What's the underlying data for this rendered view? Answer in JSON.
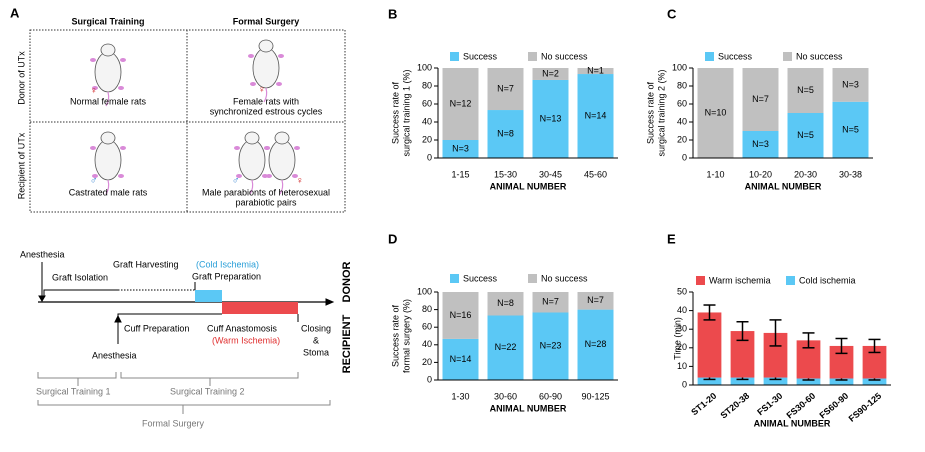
{
  "panel_a": {
    "letter": "A",
    "columns": [
      "Surgical Training",
      "Formal Surgery"
    ],
    "rows": [
      "Donor of UTx",
      "Recipient of UTx"
    ],
    "cells": [
      {
        "label": [
          "Normal female rats"
        ],
        "symbols": [
          "♀"
        ]
      },
      {
        "label": [
          "Female rats with",
          "synchronized estrous cycles"
        ],
        "symbols": [
          "♀"
        ]
      },
      {
        "label": [
          "Castrated male rats"
        ],
        "symbols": [
          "♂"
        ]
      },
      {
        "label": [
          "Male parabionts of heterosexual",
          "parabiotic pairs"
        ],
        "symbols": [
          "♂",
          "♀"
        ]
      }
    ]
  },
  "timeline": {
    "anesthesia_donor": "Anesthesia",
    "graft_isolation": "Graft Isolation",
    "graft_harvesting": "Graft Harvesting",
    "cold_ischemia": "(Cold Ischemia)",
    "graft_preparation": "Graft Preparation",
    "donor": "DONOR",
    "cuff_preparation": "Cuff Preparation",
    "cuff_anastomosis": "Cuff Anastomosis",
    "warm_ischemia": "(Warm Ischemia)",
    "closing": [
      "Closing",
      "&",
      "Stoma"
    ],
    "anesthesia_recipient": "Anesthesia",
    "recipient": "RECIPIENT",
    "surgical_training_1": "Surgical Training 1",
    "surgical_training_2": "Surgical Training 2",
    "formal_surgery": "Formal Surgery"
  },
  "chart_data": [
    {
      "type": "bar",
      "stacked": true,
      "panel": "B",
      "ylabel": [
        "Success rate of",
        "surgical training 1 (%)"
      ],
      "xlabel": "ANIMAL NUMBER",
      "categories": [
        "1-15",
        "15-30",
        "30-45",
        "45-60"
      ],
      "series": [
        {
          "name": "Success",
          "color": "#5bc8f5",
          "values": [
            20,
            53.3,
            86.7,
            93.3
          ],
          "n_labels": [
            "N=3",
            "N=8",
            "N=13",
            "N=14"
          ]
        },
        {
          "name": "No success",
          "color": "#c0c0c0",
          "values": [
            80,
            46.7,
            13.3,
            6.7
          ],
          "n_labels": [
            "N=12",
            "N=7",
            "N=2",
            "N=1"
          ]
        }
      ],
      "ylim": [
        0,
        100
      ],
      "yticks": [
        0,
        20,
        40,
        60,
        80,
        100
      ]
    },
    {
      "type": "bar",
      "stacked": true,
      "panel": "C",
      "ylabel": [
        "Success rate of",
        "surgical training 2 (%)"
      ],
      "xlabel": "ANIMAL NUMBER",
      "categories": [
        "1-10",
        "10-20",
        "20-30",
        "30-38"
      ],
      "series": [
        {
          "name": "Success",
          "color": "#5bc8f5",
          "values": [
            0,
            30,
            50,
            62.5
          ],
          "n_labels": [
            null,
            "N=3",
            "N=5",
            "N=5"
          ]
        },
        {
          "name": "No success",
          "color": "#c0c0c0",
          "values": [
            100,
            70,
            50,
            37.5
          ],
          "n_labels": [
            "N=10",
            "N=7",
            "N=5",
            "N=3"
          ]
        }
      ],
      "ylim": [
        0,
        100
      ],
      "yticks": [
        0,
        20,
        40,
        60,
        80,
        100
      ]
    },
    {
      "type": "bar",
      "stacked": true,
      "panel": "D",
      "ylabel": [
        "Success rate of",
        "formal surgery (%)"
      ],
      "xlabel": "ANIMAL NUMBER",
      "categories": [
        "1-30",
        "30-60",
        "60-90",
        "90-125"
      ],
      "series": [
        {
          "name": "Success",
          "color": "#5bc8f5",
          "values": [
            46.7,
            73.3,
            76.7,
            80
          ],
          "n_labels": [
            "N=14",
            "N=22",
            "N=23",
            "N=28"
          ]
        },
        {
          "name": "No success",
          "color": "#c0c0c0",
          "values": [
            53.3,
            26.7,
            23.3,
            20
          ],
          "n_labels": [
            "N=16",
            "N=8",
            "N=7",
            "N=7"
          ]
        }
      ],
      "ylim": [
        0,
        100
      ],
      "yticks": [
        0,
        20,
        40,
        60,
        80,
        100
      ]
    },
    {
      "type": "bar",
      "stacked": true,
      "panel": "E",
      "ylabel": [
        "Time (min)"
      ],
      "xlabel": "ANIMAL NUMBER",
      "categories": [
        "ST1-20",
        "ST20-38",
        "FS1-30",
        "FS30-60",
        "FS60-90",
        "FS90-125"
      ],
      "series": [
        {
          "name": "Cold ischemia",
          "color": "#5bc8f5",
          "values": [
            4,
            4,
            4,
            3.5,
            3.5,
            3.5
          ],
          "errors": [
            1,
            1,
            1,
            0.8,
            0.8,
            0.8
          ]
        },
        {
          "name": "Warm ischemia",
          "color": "#ec4a4d",
          "values": [
            35,
            25,
            24,
            20.5,
            17.5,
            17.5
          ],
          "errors": [
            4,
            5,
            7,
            4,
            4,
            3.5
          ]
        }
      ],
      "legend_order": [
        1,
        0
      ],
      "ylim": [
        0,
        50
      ],
      "yticks": [
        0,
        10,
        20,
        30,
        40,
        50
      ]
    }
  ]
}
